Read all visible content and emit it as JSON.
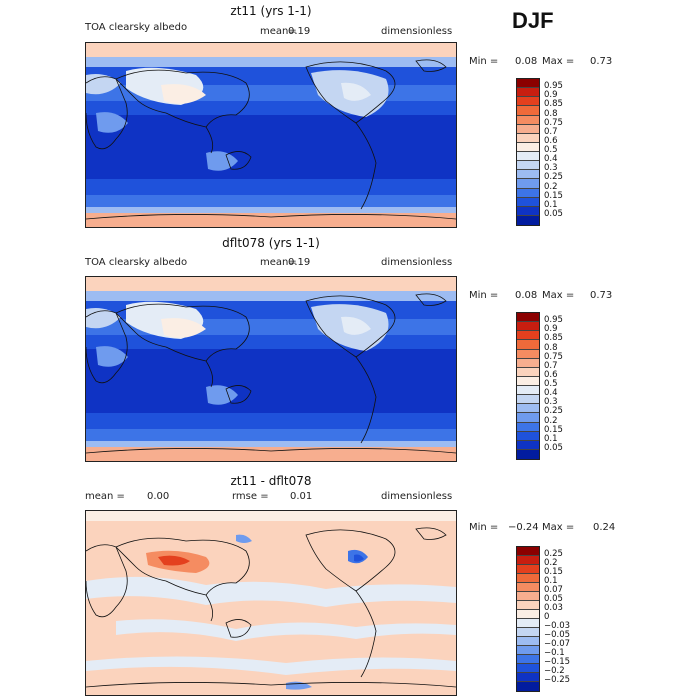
{
  "season": "DJF",
  "panels": [
    {
      "title": "zt11 (yrs 1-1)",
      "variable": "TOA clearsky albedo",
      "mean_label": "mean=",
      "mean_value": "0.19",
      "units": "dimensionless",
      "min_label": "Min =",
      "min_value": "0.08",
      "max_label": "Max =",
      "max_value": "0.73",
      "levels": [
        "0.95",
        "0.9",
        "0.85",
        "0.8",
        "0.75",
        "0.7",
        "0.6",
        "0.5",
        "0.4",
        "0.3",
        "0.25",
        "0.2",
        "0.15",
        "0.1",
        "0.05"
      ],
      "colors": [
        "#8b0000",
        "#c81e10",
        "#e4401e",
        "#ef6a3a",
        "#f58c61",
        "#f7ae8f",
        "#fbd3bd",
        "#fbeee4",
        "#e4ecf6",
        "#c4d6f2",
        "#9dbcf2",
        "#6f9bee",
        "#3d74e7",
        "#1f52db",
        "#0f33c4",
        "#021c9f"
      ]
    },
    {
      "title": "dflt078 (yrs 1-1)",
      "variable": "TOA clearsky albedo",
      "mean_label": "mean=",
      "mean_value": "0.19",
      "units": "dimensionless",
      "min_label": "Min =",
      "min_value": "0.08",
      "max_label": "Max =",
      "max_value": "0.73",
      "levels": [
        "0.95",
        "0.9",
        "0.85",
        "0.8",
        "0.75",
        "0.7",
        "0.6",
        "0.5",
        "0.4",
        "0.3",
        "0.25",
        "0.2",
        "0.15",
        "0.1",
        "0.05"
      ],
      "colors": [
        "#8b0000",
        "#c81e10",
        "#e4401e",
        "#ef6a3a",
        "#f58c61",
        "#f7ae8f",
        "#fbd3bd",
        "#fbeee4",
        "#e4ecf6",
        "#c4d6f2",
        "#9dbcf2",
        "#6f9bee",
        "#3d74e7",
        "#1f52db",
        "#0f33c4",
        "#021c9f"
      ]
    },
    {
      "title": "zt11 - dflt078",
      "mean_label": "mean =",
      "mean_value": "0.00",
      "rmse_label": "rmse =",
      "rmse_value": "0.01",
      "units": "dimensionless",
      "min_label": "Min =",
      "min_value": "−0.24",
      "max_label": "Max =",
      "max_value": "0.24",
      "levels": [
        "0.25",
        "0.2",
        "0.15",
        "0.1",
        "0.07",
        "0.05",
        "0.03",
        "0",
        "−0.03",
        "−0.05",
        "−0.07",
        "−0.1",
        "−0.15",
        "−0.2",
        "−0.25"
      ],
      "colors": [
        "#8b0000",
        "#c81e10",
        "#e4401e",
        "#ef6a3a",
        "#f58c61",
        "#f7ae8f",
        "#fbd3bd",
        "#fbeee4",
        "#e4ecf6",
        "#c4d6f2",
        "#9dbcf2",
        "#6f9bee",
        "#3d74e7",
        "#1f52db",
        "#0f33c4",
        "#021c9f"
      ]
    }
  ]
}
